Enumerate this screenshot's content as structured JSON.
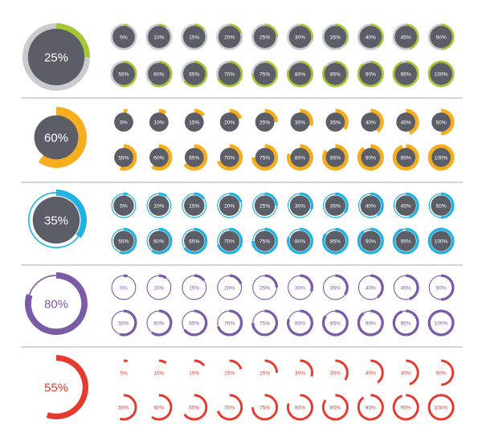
{
  "colors": {
    "dark": "#5b5e67",
    "green": "#a7c835",
    "orange": "#f6ad1e",
    "blue": "#1fb2e4",
    "purple": "#7b5aa6",
    "red": "#e63a2e",
    "divider": "#8f9296",
    "track_light": "#d8dadd"
  },
  "labels": [
    "5%",
    "10%",
    "15%",
    "20%",
    "25%",
    "30%",
    "35%",
    "40%",
    "45%",
    "50%",
    "55%",
    "60%",
    "65%",
    "70%",
    "75%",
    "80%",
    "85%",
    "90%",
    "95%",
    "100%"
  ],
  "values": [
    5,
    10,
    15,
    20,
    25,
    30,
    35,
    40,
    45,
    50,
    55,
    60,
    65,
    70,
    75,
    80,
    85,
    90,
    95,
    100
  ],
  "sets": [
    {
      "name": "green-set",
      "style": "dark-disc-outer-ring",
      "color": "green",
      "big_label": "25%",
      "big_value": 25
    },
    {
      "name": "orange-set",
      "style": "dark-disc-wedge",
      "color": "orange",
      "big_label": "60%",
      "big_value": 60
    },
    {
      "name": "blue-set",
      "style": "dark-disc-thick-ring",
      "color": "blue",
      "big_label": "35%",
      "big_value": 35
    },
    {
      "name": "purple-set",
      "style": "white-disc-thick-ring",
      "color": "purple",
      "big_label": "80%",
      "big_value": 80
    },
    {
      "name": "red-set",
      "style": "white-disc-thin-ring",
      "color": "red",
      "big_label": "55%",
      "big_value": 55
    }
  ]
}
